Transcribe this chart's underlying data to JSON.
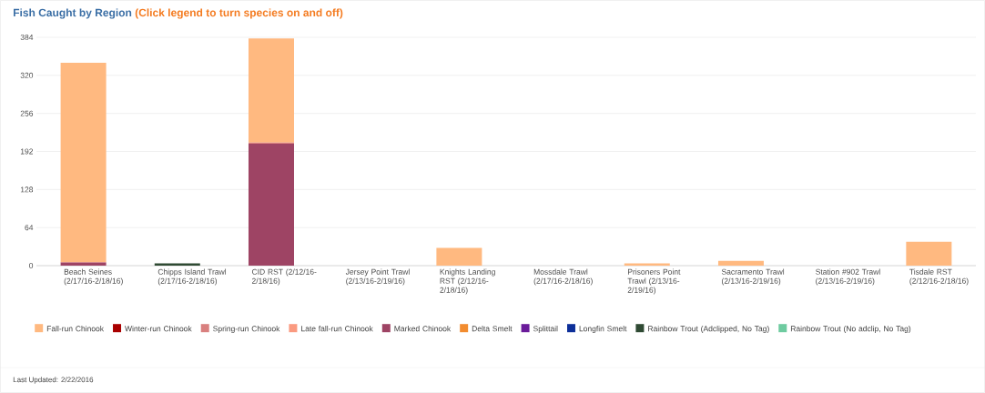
{
  "chart_data": {
    "type": "bar",
    "title": "Fish Caught by Region",
    "subtitle": "(Click legend to turn species on and off)",
    "categories": [
      "Beach Seines (2/17/16-2/18/16)",
      "Chipps Island Trawl (2/17/16-2/18/16)",
      "CID RST (2/12/16-2/18/16)",
      "Jersey Point Trawl (2/13/16-2/19/16)",
      "Knights Landing RST (2/12/16-2/18/16)",
      "Mossdale Trawl (2/17/16-2/18/16)",
      "Prisoners Point Trawl (2/13/16-2/19/16)",
      "Sacramento Trawl (2/13/16-2/19/16)",
      "Station #902 Trawl (2/13/16-2/19/16)",
      "Tisdale RST (2/12/16-2/18/16)"
    ],
    "stacked": true,
    "ylim": [
      0,
      384
    ],
    "yticks": [
      0,
      64,
      128,
      192,
      256,
      320,
      384
    ],
    "grid": "y",
    "legend": "bottom",
    "series": [
      {
        "name": "Rainbow Trout (No adclip, No Tag)",
        "color": "#6ecba0",
        "values": [
          0,
          0,
          0,
          0,
          0,
          0,
          0,
          0,
          0,
          0
        ]
      },
      {
        "name": "Rainbow Trout (Adclipped, No Tag)",
        "color": "#2f4a33",
        "values": [
          0,
          4,
          0,
          0,
          0,
          0,
          0,
          0,
          0,
          0
        ]
      },
      {
        "name": "Longfin Smelt",
        "color": "#0d2f99",
        "values": [
          0,
          0,
          0,
          0,
          0,
          0,
          0,
          0,
          0,
          0
        ]
      },
      {
        "name": "Splittail",
        "color": "#6a1b9a",
        "values": [
          0,
          0,
          0,
          0,
          0,
          0,
          0,
          0,
          0,
          0
        ]
      },
      {
        "name": "Delta Smelt",
        "color": "#f28c2f",
        "values": [
          0,
          0,
          0,
          0,
          0,
          0,
          0,
          0,
          0,
          0
        ]
      },
      {
        "name": "Marked Chinook",
        "color": "#9e4464",
        "values": [
          5,
          0,
          205,
          0,
          0,
          0,
          0,
          0,
          0,
          0
        ]
      },
      {
        "name": "Late fall-run Chinook",
        "color": "#fa9a80",
        "values": [
          0,
          0,
          0,
          0,
          0,
          0,
          0,
          0,
          0,
          0
        ]
      },
      {
        "name": "Spring-run Chinook",
        "color": "#d9807f",
        "values": [
          1,
          0,
          2,
          0,
          0,
          0,
          0,
          0,
          0,
          0
        ]
      },
      {
        "name": "Winter-run Chinook",
        "color": "#a90000",
        "values": [
          0,
          0,
          0,
          0,
          0,
          0,
          0,
          0,
          0,
          0
        ]
      },
      {
        "name": "Fall-run Chinook",
        "color": "#ffb980",
        "values": [
          335,
          0,
          175,
          0,
          30,
          0,
          4,
          8,
          0,
          40
        ]
      }
    ],
    "annotations": [
      "Last Updated: 2/22/2016"
    ]
  }
}
